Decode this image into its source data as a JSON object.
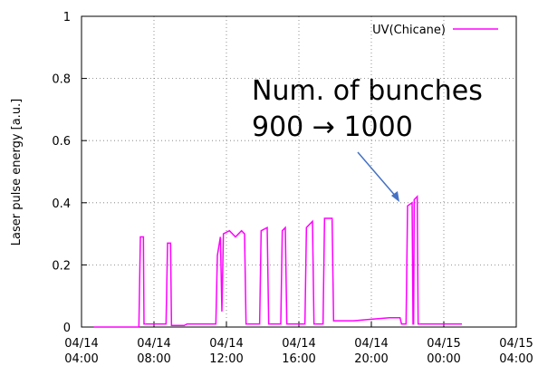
{
  "chart_data": {
    "type": "line",
    "ylabel": "Laser pulse energy [a.u.]",
    "annotation": [
      "Num. of bunches",
      "900 → 1000"
    ],
    "xlim": [
      "04/14 04:00",
      "04/15 04:00"
    ],
    "xticks": [
      "04/14 04:00",
      "04/14 08:00",
      "04/14 12:00",
      "04/14 16:00",
      "04/14 20:00",
      "04/15 00:00",
      "04/15 04:00"
    ],
    "ylim": [
      0,
      1
    ],
    "yticks": [
      0,
      0.2,
      0.4,
      0.6,
      0.8,
      1
    ],
    "grid": true,
    "legend": "upper right",
    "series": [
      {
        "name": "UV(Chicane)",
        "color": "#ff00ff",
        "x": [
          "04/14 04:40",
          "04/14 07:10",
          "04/14 07:15",
          "04/14 07:25",
          "04/14 07:27",
          "04/14 08:40",
          "04/14 08:45",
          "04/14 08:55",
          "04/14 08:58",
          "04/14 09:40",
          "04/14 09:50",
          "04/14 11:25",
          "04/14 11:30",
          "04/14 11:40",
          "04/14 11:45",
          "04/14 11:50",
          "04/14 12:10",
          "04/14 12:30",
          "04/14 12:50",
          "04/14 13:00",
          "04/14 13:05",
          "04/14 13:50",
          "04/14 13:55",
          "04/14 14:15",
          "04/14 14:20",
          "04/14 15:00",
          "04/14 15:05",
          "04/14 15:15",
          "04/14 15:20",
          "04/14 16:20",
          "04/14 16:25",
          "04/14 16:45",
          "04/14 16:50",
          "04/14 17:20",
          "04/14 17:25",
          "04/14 17:50",
          "04/14 17:55",
          "04/14 19:00",
          "04/14 20:00",
          "04/14 21:00",
          "04/14 21:35",
          "04/14 21:40",
          "04/14 21:55",
          "04/14 22:00",
          "04/14 22:15",
          "04/14 22:18",
          "04/14 22:20",
          "04/14 22:22",
          "04/14 22:32",
          "04/14 22:35",
          "04/15 00:00",
          "04/15 01:00"
        ],
        "values": [
          0,
          0,
          0.29,
          0.29,
          0.01,
          0.01,
          0.27,
          0.27,
          0.005,
          0.005,
          0.01,
          0.01,
          0.23,
          0.29,
          0.05,
          0.3,
          0.31,
          0.29,
          0.31,
          0.3,
          0.01,
          0.01,
          0.31,
          0.32,
          0.01,
          0.01,
          0.31,
          0.32,
          0.01,
          0.01,
          0.32,
          0.34,
          0.01,
          0.01,
          0.35,
          0.35,
          0.02,
          0.02,
          0.025,
          0.03,
          0.03,
          0.01,
          0.01,
          0.39,
          0.4,
          0.01,
          0.01,
          0.41,
          0.42,
          0.01,
          0.01,
          0.01
        ]
      }
    ]
  }
}
